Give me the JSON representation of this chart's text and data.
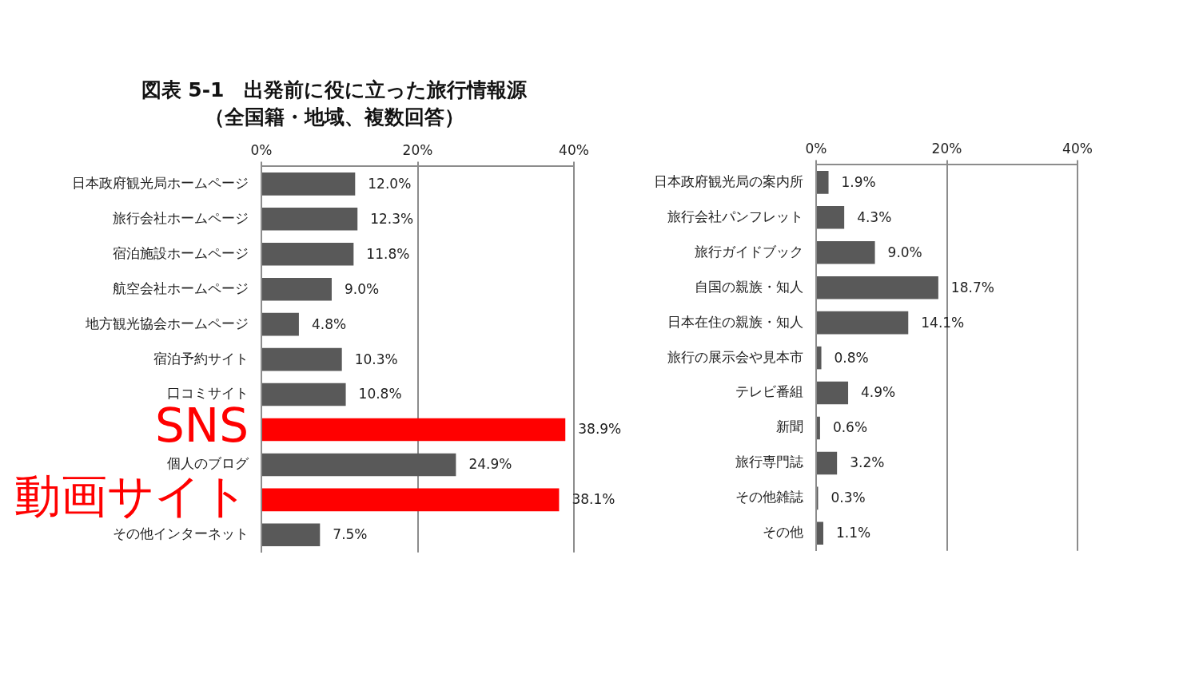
{
  "chart_data": [
    {
      "type": "bar",
      "orientation": "horizontal",
      "title": "図表 5-1　出発前に役に立った旅行情報源（全国籍・地域、複数回答）",
      "categories": [
        "日本政府観光局ホームページ",
        "旅行会社ホームページ",
        "宿泊施設ホームページ",
        "航空会社ホームページ",
        "地方観光協会ホームページ",
        "宿泊予約サイト",
        "口コミサイト",
        "SNS",
        "個人のブログ",
        "動画サイト",
        "その他インターネット"
      ],
      "values": [
        12.0,
        12.3,
        11.8,
        9.0,
        4.8,
        10.3,
        10.8,
        38.9,
        24.9,
        38.1,
        7.5
      ],
      "colors": [
        "#595959",
        "#595959",
        "#595959",
        "#595959",
        "#595959",
        "#595959",
        "#595959",
        "#ff0000",
        "#595959",
        "#ff0000",
        "#595959"
      ],
      "value_labels": [
        "12.0%",
        "12.3%",
        "11.8%",
        "9.0%",
        "4.8%",
        "10.3%",
        "10.8%",
        "38.9%",
        "24.9%",
        "38.1%",
        "7.5%"
      ],
      "xlim": [
        0,
        40
      ],
      "xticks": [
        {
          "value": 0,
          "label": "0%"
        },
        {
          "value": 20,
          "label": "20%"
        },
        {
          "value": 40,
          "label": "40%"
        }
      ],
      "grid": "x"
    },
    {
      "type": "bar",
      "orientation": "horizontal",
      "categories": [
        "日本政府観光局の案内所",
        "旅行会社パンフレット",
        "旅行ガイドブック",
        "自国の親族・知人",
        "日本在住の親族・知人",
        "旅行の展示会や見本市",
        "テレビ番組",
        "新聞",
        "旅行専門誌",
        "その他雑誌",
        "その他"
      ],
      "values": [
        1.9,
        4.3,
        9.0,
        18.7,
        14.1,
        0.8,
        4.9,
        0.6,
        3.2,
        0.3,
        1.1
      ],
      "colors": [
        "#595959",
        "#595959",
        "#595959",
        "#595959",
        "#595959",
        "#595959",
        "#595959",
        "#595959",
        "#595959",
        "#595959",
        "#595959"
      ],
      "value_labels": [
        "1.9%",
        "4.3%",
        "9.0%",
        "18.7%",
        "14.1%",
        "0.8%",
        "4.9%",
        "0.6%",
        "3.2%",
        "0.3%",
        "1.1%"
      ],
      "xlim": [
        0,
        40
      ],
      "xticks": [
        {
          "value": 0,
          "label": "0%"
        },
        {
          "value": 20,
          "label": "20%"
        },
        {
          "value": 40,
          "label": "40%"
        }
      ],
      "grid": "x"
    }
  ]
}
